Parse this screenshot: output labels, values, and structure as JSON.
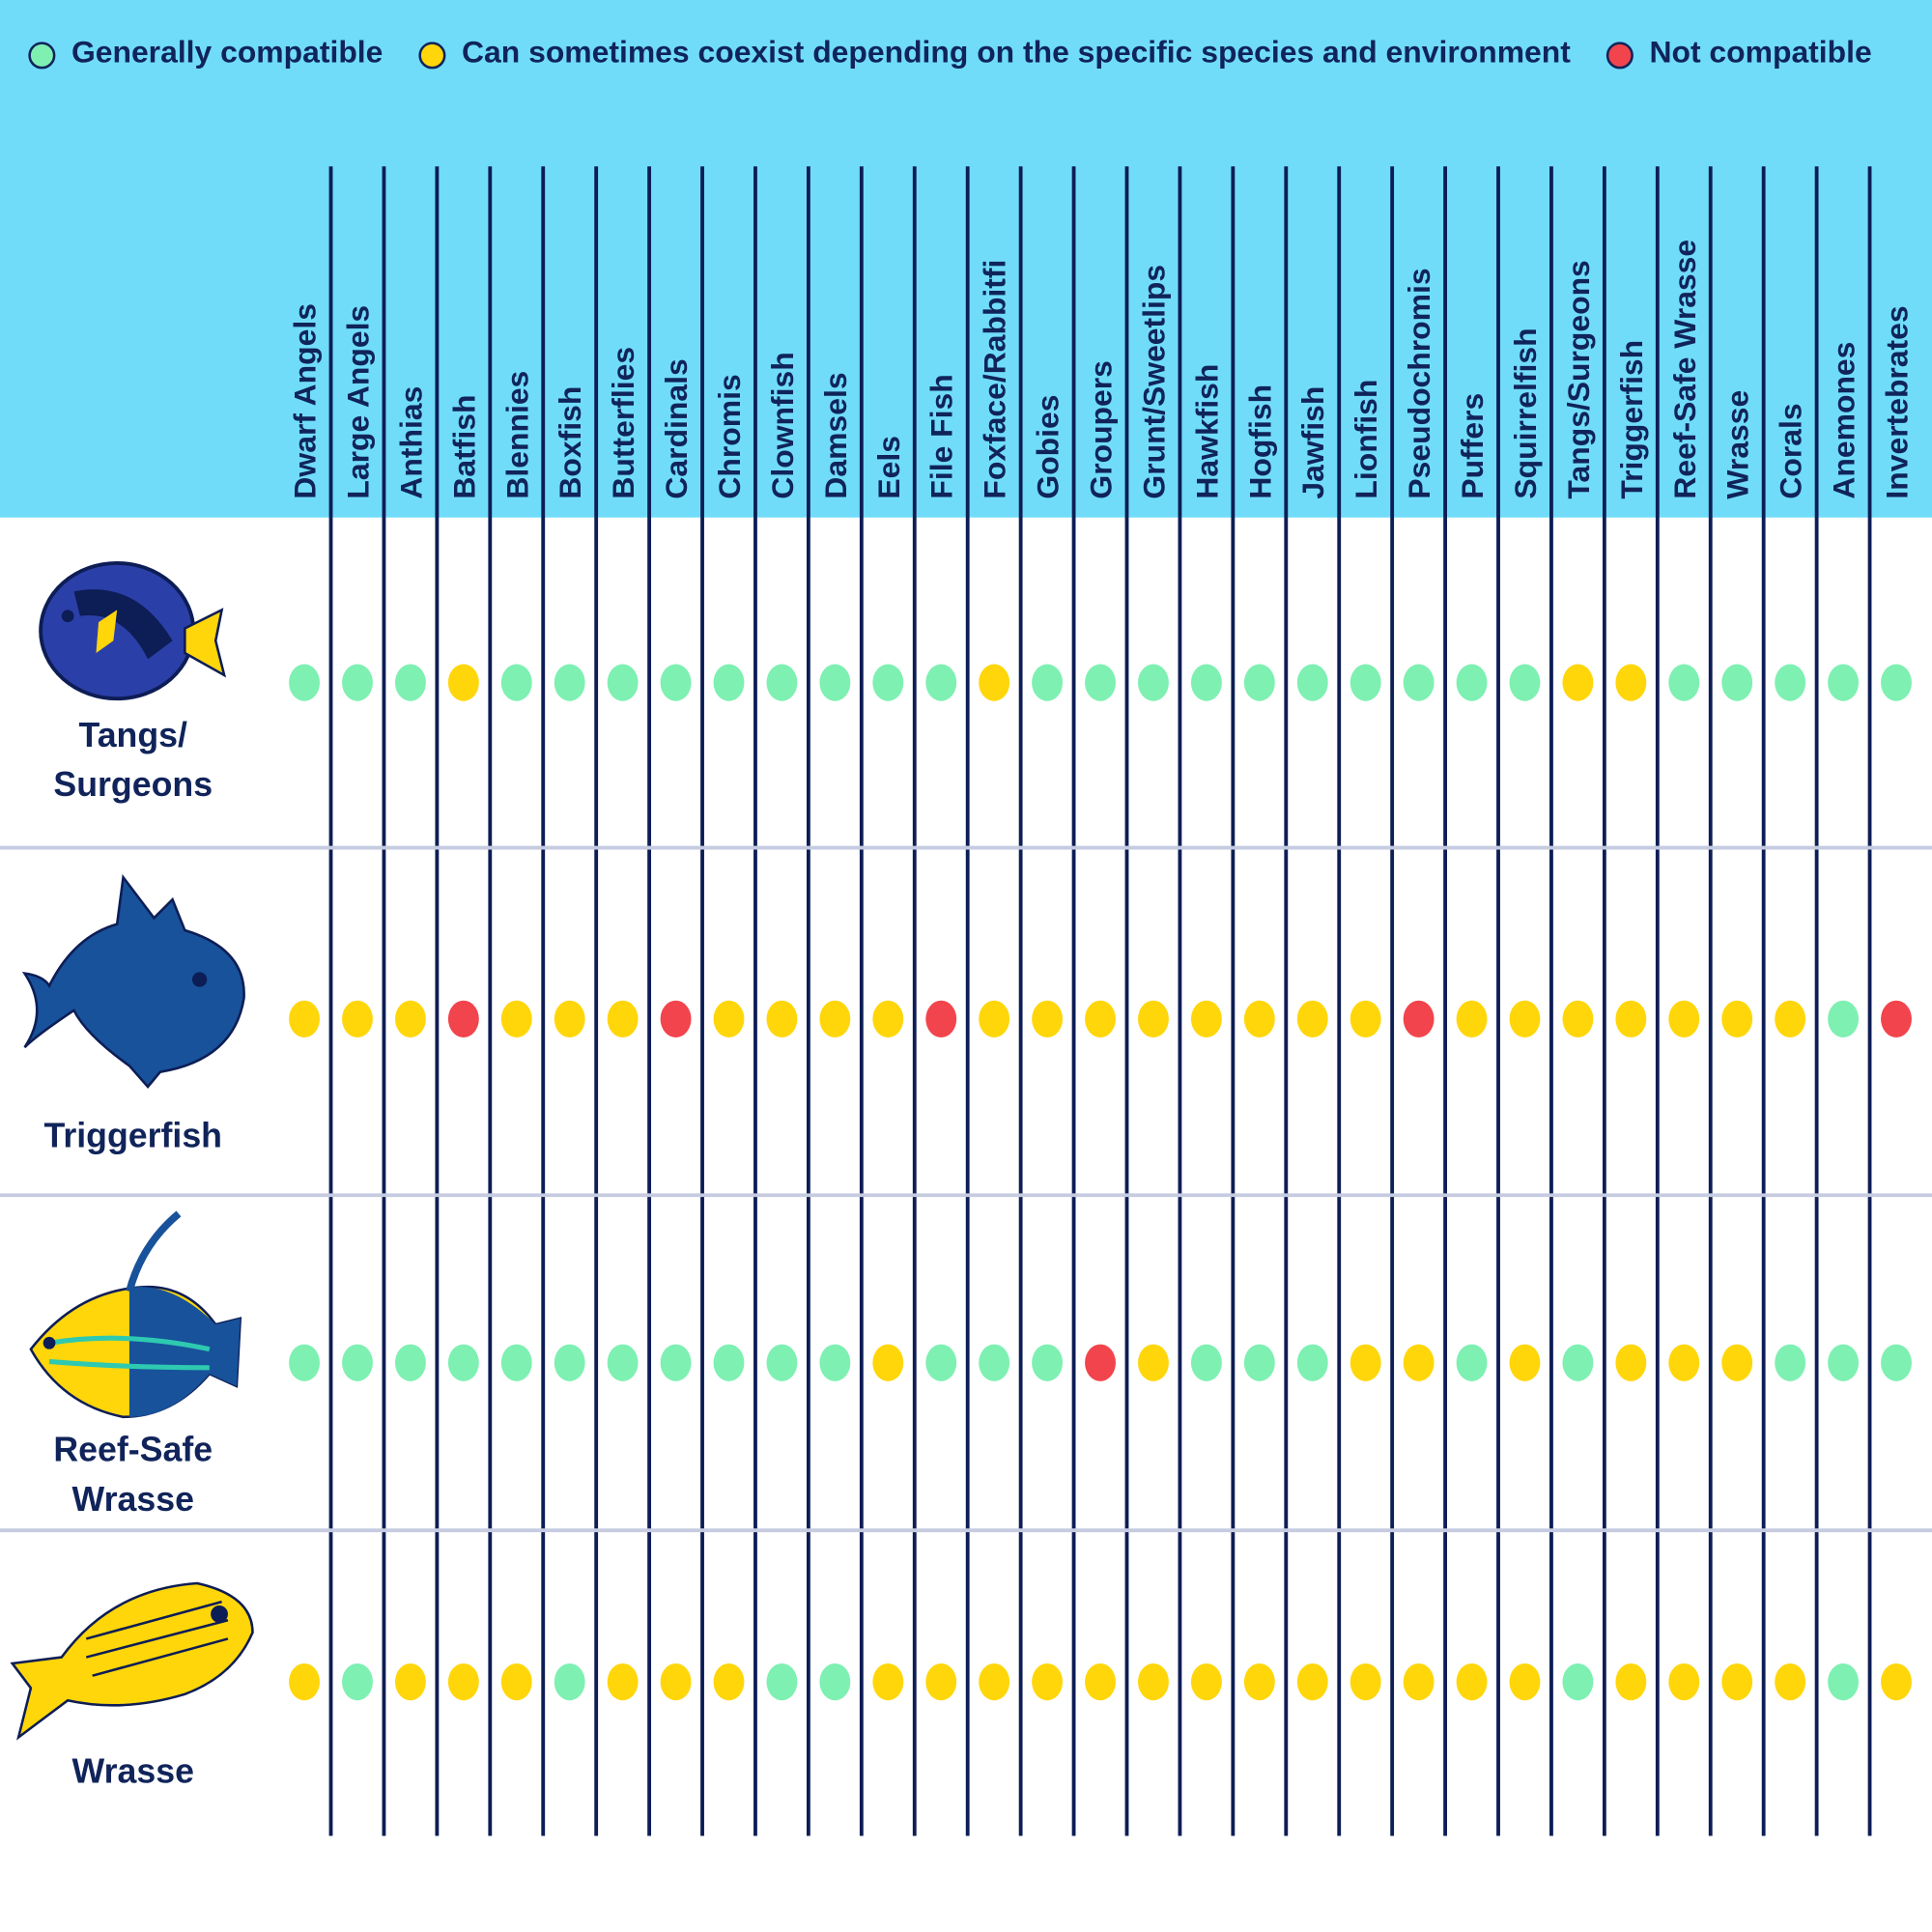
{
  "legend": [
    {
      "label": "Generally compatible",
      "color": "#7ef0b2"
    },
    {
      "label": "Can sometimes coexist depending on the specific species and environment",
      "color": "#ffd60a"
    },
    {
      "label": "Not compatible",
      "color": "#f2444c"
    }
  ],
  "columns": [
    "Dwarf Angels",
    "Large Angels",
    "Anthias",
    "Batfish",
    "Blennies",
    "Boxfish",
    "Butterflies",
    "Cardinals",
    "Chromis",
    "Clownfish",
    "Damsels",
    "Eels",
    "File Fish",
    "Foxface/Rabbitfi",
    "Gobies",
    "Groupers",
    "Grunt/Sweetlips",
    "Hawkfish",
    "Hogfish",
    "Jawfish",
    "Lionfish",
    "Pseudochromis",
    "Puffers",
    "Squirrelfish",
    "Tangs/Surgeons",
    "Triggerfish",
    "Reef-Safe Wrasse",
    "Wrasse",
    "Corals",
    "Anemones",
    "Invertebrates"
  ],
  "rows": [
    {
      "label": [
        "Tangs/",
        "Surgeons"
      ],
      "cells": [
        "#7ef0b2",
        "#7ef0b2",
        "#7ef0b2",
        "#ffd60a",
        "#7ef0b2",
        "#7ef0b2",
        "#7ef0b2",
        "#7ef0b2",
        "#7ef0b2",
        "#7ef0b2",
        "#7ef0b2",
        "#7ef0b2",
        "#7ef0b2",
        "#ffd60a",
        "#7ef0b2",
        "#7ef0b2",
        "#7ef0b2",
        "#7ef0b2",
        "#7ef0b2",
        "#7ef0b2",
        "#7ef0b2",
        "#7ef0b2",
        "#7ef0b2",
        "#7ef0b2",
        "#ffd60a",
        "#ffd60a",
        "#7ef0b2",
        "#7ef0b2",
        "#7ef0b2",
        "#7ef0b2",
        "#7ef0b2"
      ]
    },
    {
      "label": [
        "Triggerfish"
      ],
      "cells": [
        "#ffd60a",
        "#ffd60a",
        "#ffd60a",
        "#f2444c",
        "#ffd60a",
        "#ffd60a",
        "#ffd60a",
        "#f2444c",
        "#ffd60a",
        "#ffd60a",
        "#ffd60a",
        "#ffd60a",
        "#f2444c",
        "#ffd60a",
        "#ffd60a",
        "#ffd60a",
        "#ffd60a",
        "#ffd60a",
        "#ffd60a",
        "#ffd60a",
        "#ffd60a",
        "#f2444c",
        "#ffd60a",
        "#ffd60a",
        "#ffd60a",
        "#ffd60a",
        "#ffd60a",
        "#ffd60a",
        "#ffd60a",
        "#7ef0b2",
        "#f2444c"
      ]
    },
    {
      "label": [
        "Reef-Safe",
        "Wrasse"
      ],
      "cells": [
        "#7ef0b2",
        "#7ef0b2",
        "#7ef0b2",
        "#7ef0b2",
        "#7ef0b2",
        "#7ef0b2",
        "#7ef0b2",
        "#7ef0b2",
        "#7ef0b2",
        "#7ef0b2",
        "#7ef0b2",
        "#ffd60a",
        "#7ef0b2",
        "#7ef0b2",
        "#7ef0b2",
        "#f2444c",
        "#ffd60a",
        "#7ef0b2",
        "#7ef0b2",
        "#7ef0b2",
        "#ffd60a",
        "#ffd60a",
        "#7ef0b2",
        "#ffd60a",
        "#7ef0b2",
        "#ffd60a",
        "#ffd60a",
        "#ffd60a",
        "#7ef0b2",
        "#7ef0b2",
        "#7ef0b2"
      ]
    },
    {
      "label": [
        "Wrasse"
      ],
      "cells": [
        "#ffd60a",
        "#7ef0b2",
        "#ffd60a",
        "#ffd60a",
        "#ffd60a",
        "#7ef0b2",
        "#ffd60a",
        "#ffd60a",
        "#ffd60a",
        "#7ef0b2",
        "#7ef0b2",
        "#ffd60a",
        "#ffd60a",
        "#ffd60a",
        "#ffd60a",
        "#ffd60a",
        "#ffd60a",
        "#ffd60a",
        "#ffd60a",
        "#ffd60a",
        "#ffd60a",
        "#ffd60a",
        "#ffd60a",
        "#ffd60a",
        "#7ef0b2",
        "#ffd60a",
        "#ffd60a",
        "#ffd60a",
        "#ffd60a",
        "#7ef0b2",
        "#ffd60a"
      ]
    }
  ]
}
